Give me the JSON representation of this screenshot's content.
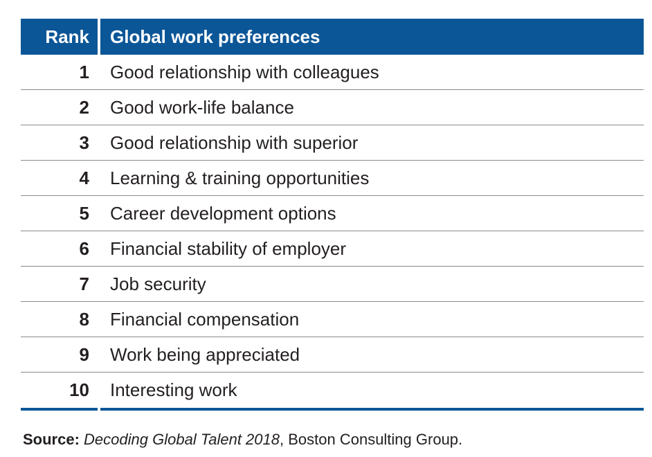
{
  "table": {
    "headers": {
      "rank": "Rank",
      "preference": "Global work preferences"
    },
    "rows": [
      {
        "rank": "1",
        "preference": "Good relationship with colleagues"
      },
      {
        "rank": "2",
        "preference": "Good work-life balance"
      },
      {
        "rank": "3",
        "preference": "Good relationship with superior"
      },
      {
        "rank": "4",
        "preference": "Learning & training opportunities"
      },
      {
        "rank": "5",
        "preference": "Career development options"
      },
      {
        "rank": "6",
        "preference": "Financial stability of employer"
      },
      {
        "rank": "7",
        "preference": "Job security"
      },
      {
        "rank": "8",
        "preference": "Financial compensation"
      },
      {
        "rank": "9",
        "preference": "Work being appreciated"
      },
      {
        "rank": "10",
        "preference": "Interesting work"
      }
    ]
  },
  "source": {
    "label": "Source:",
    "title": "Decoding Global Talent 2018",
    "rest": ", Boston Consulting Group."
  },
  "colors": {
    "header_bg": "#0b5697",
    "header_text": "#ffffff",
    "divider": "#8a8a8a"
  }
}
